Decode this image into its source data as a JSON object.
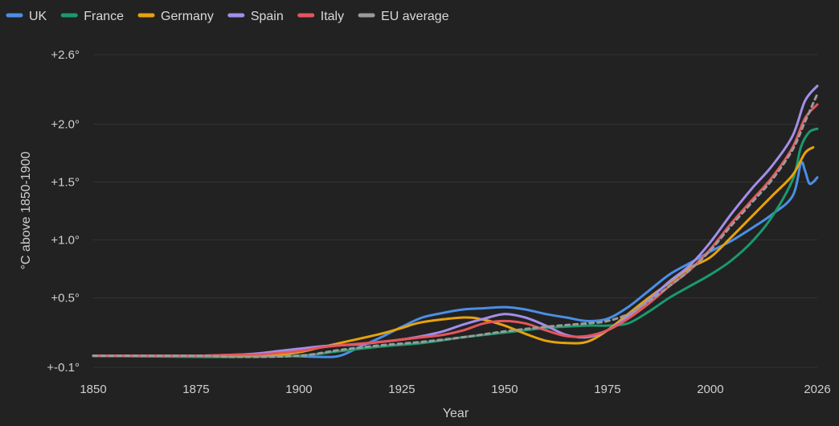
{
  "chart_data": {
    "type": "line",
    "title": "",
    "xlabel": "Year",
    "ylabel": "°C above 1850-1900",
    "xlim": [
      1850,
      2026
    ],
    "ylim": [
      -0.1,
      2.6
    ],
    "x_ticks": [
      1850,
      1875,
      1900,
      1925,
      1950,
      1975,
      2000,
      2026
    ],
    "y_ticks": [
      {
        "value": -0.1,
        "label": "+-0.1°"
      },
      {
        "value": 0.5,
        "label": "+0.5°"
      },
      {
        "value": 1.0,
        "label": "+1.0°"
      },
      {
        "value": 1.5,
        "label": "+1.5°"
      },
      {
        "value": 2.0,
        "label": "+2.0°"
      },
      {
        "value": 2.6,
        "label": "+2.6°"
      }
    ],
    "grid": true,
    "legend_position": "top-left",
    "series": [
      {
        "name": "UK",
        "color": "#4a8fe7",
        "dashed": false,
        "points": [
          [
            1850,
            0.0
          ],
          [
            1875,
            0.0
          ],
          [
            1895,
            0.0
          ],
          [
            1905,
            -0.01
          ],
          [
            1910,
            0.0
          ],
          [
            1915,
            0.08
          ],
          [
            1920,
            0.16
          ],
          [
            1925,
            0.25
          ],
          [
            1930,
            0.33
          ],
          [
            1935,
            0.37
          ],
          [
            1940,
            0.4
          ],
          [
            1945,
            0.41
          ],
          [
            1950,
            0.42
          ],
          [
            1955,
            0.4
          ],
          [
            1960,
            0.36
          ],
          [
            1965,
            0.33
          ],
          [
            1970,
            0.3
          ],
          [
            1975,
            0.32
          ],
          [
            1980,
            0.42
          ],
          [
            1985,
            0.56
          ],
          [
            1990,
            0.7
          ],
          [
            1995,
            0.8
          ],
          [
            2000,
            0.9
          ],
          [
            2005,
            0.99
          ],
          [
            2010,
            1.1
          ],
          [
            2015,
            1.22
          ],
          [
            2020,
            1.38
          ],
          [
            2022,
            1.66
          ],
          [
            2023,
            1.6
          ],
          [
            2024,
            1.49
          ],
          [
            2025,
            1.5
          ],
          [
            2026,
            1.54
          ]
        ]
      },
      {
        "name": "France",
        "color": "#1a9a6c",
        "dashed": false,
        "points": [
          [
            1850,
            0.0
          ],
          [
            1875,
            -0.01
          ],
          [
            1885,
            -0.01
          ],
          [
            1900,
            0.0
          ],
          [
            1910,
            0.04
          ],
          [
            1920,
            0.08
          ],
          [
            1930,
            0.11
          ],
          [
            1940,
            0.16
          ],
          [
            1950,
            0.2
          ],
          [
            1960,
            0.24
          ],
          [
            1970,
            0.26
          ],
          [
            1975,
            0.26
          ],
          [
            1980,
            0.28
          ],
          [
            1985,
            0.38
          ],
          [
            1990,
            0.5
          ],
          [
            1995,
            0.6
          ],
          [
            2000,
            0.7
          ],
          [
            2005,
            0.82
          ],
          [
            2010,
            0.98
          ],
          [
            2015,
            1.2
          ],
          [
            2020,
            1.52
          ],
          [
            2022,
            1.8
          ],
          [
            2024,
            1.93
          ],
          [
            2026,
            1.96
          ]
        ]
      },
      {
        "name": "Germany",
        "color": "#e6a20e",
        "dashed": false,
        "points": [
          [
            1850,
            0.0
          ],
          [
            1875,
            0.0
          ],
          [
            1885,
            0.0
          ],
          [
            1895,
            0.01
          ],
          [
            1900,
            0.03
          ],
          [
            1905,
            0.07
          ],
          [
            1910,
            0.11
          ],
          [
            1920,
            0.19
          ],
          [
            1925,
            0.24
          ],
          [
            1930,
            0.29
          ],
          [
            1940,
            0.33
          ],
          [
            1945,
            0.31
          ],
          [
            1950,
            0.26
          ],
          [
            1955,
            0.19
          ],
          [
            1960,
            0.13
          ],
          [
            1965,
            0.11
          ],
          [
            1970,
            0.12
          ],
          [
            1975,
            0.22
          ],
          [
            1980,
            0.36
          ],
          [
            1985,
            0.5
          ],
          [
            1990,
            0.63
          ],
          [
            1995,
            0.76
          ],
          [
            2000,
            0.85
          ],
          [
            2005,
            1.02
          ],
          [
            2010,
            1.2
          ],
          [
            2015,
            1.38
          ],
          [
            2020,
            1.56
          ],
          [
            2023,
            1.75
          ],
          [
            2025,
            1.8
          ]
        ]
      },
      {
        "name": "Spain",
        "color": "#a48ee8",
        "dashed": false,
        "points": [
          [
            1850,
            0.0
          ],
          [
            1875,
            0.0
          ],
          [
            1885,
            0.01
          ],
          [
            1890,
            0.02
          ],
          [
            1895,
            0.04
          ],
          [
            1900,
            0.06
          ],
          [
            1905,
            0.08
          ],
          [
            1910,
            0.09
          ],
          [
            1915,
            0.1
          ],
          [
            1920,
            0.12
          ],
          [
            1925,
            0.14
          ],
          [
            1930,
            0.17
          ],
          [
            1935,
            0.21
          ],
          [
            1940,
            0.27
          ],
          [
            1945,
            0.32
          ],
          [
            1950,
            0.36
          ],
          [
            1955,
            0.33
          ],
          [
            1960,
            0.26
          ],
          [
            1965,
            0.18
          ],
          [
            1970,
            0.16
          ],
          [
            1975,
            0.22
          ],
          [
            1980,
            0.34
          ],
          [
            1985,
            0.48
          ],
          [
            1990,
            0.64
          ],
          [
            1995,
            0.78
          ],
          [
            2000,
            0.98
          ],
          [
            2005,
            1.22
          ],
          [
            2010,
            1.44
          ],
          [
            2015,
            1.64
          ],
          [
            2020,
            1.9
          ],
          [
            2023,
            2.2
          ],
          [
            2026,
            2.33
          ]
        ]
      },
      {
        "name": "Italy",
        "color": "#e5565e",
        "dashed": false,
        "points": [
          [
            1850,
            0.0
          ],
          [
            1875,
            0.0
          ],
          [
            1885,
            0.01
          ],
          [
            1890,
            0.01
          ],
          [
            1900,
            0.04
          ],
          [
            1905,
            0.07
          ],
          [
            1910,
            0.09
          ],
          [
            1920,
            0.12
          ],
          [
            1930,
            0.16
          ],
          [
            1935,
            0.18
          ],
          [
            1940,
            0.22
          ],
          [
            1945,
            0.28
          ],
          [
            1950,
            0.3
          ],
          [
            1955,
            0.28
          ],
          [
            1960,
            0.22
          ],
          [
            1965,
            0.17
          ],
          [
            1970,
            0.17
          ],
          [
            1975,
            0.22
          ],
          [
            1980,
            0.32
          ],
          [
            1985,
            0.45
          ],
          [
            1990,
            0.6
          ],
          [
            1995,
            0.74
          ],
          [
            2000,
            0.92
          ],
          [
            2005,
            1.14
          ],
          [
            2010,
            1.34
          ],
          [
            2015,
            1.54
          ],
          [
            2020,
            1.8
          ],
          [
            2023,
            2.05
          ],
          [
            2026,
            2.17
          ]
        ]
      },
      {
        "name": "EU average",
        "color": "#9a9a9a",
        "dashed": true,
        "points": [
          [
            1850,
            0.0
          ],
          [
            1875,
            0.0
          ],
          [
            1885,
            -0.01
          ],
          [
            1900,
            0.0
          ],
          [
            1910,
            0.05
          ],
          [
            1920,
            0.09
          ],
          [
            1930,
            0.12
          ],
          [
            1940,
            0.16
          ],
          [
            1950,
            0.21
          ],
          [
            1960,
            0.25
          ],
          [
            1970,
            0.28
          ],
          [
            1975,
            0.3
          ],
          [
            1980,
            0.36
          ],
          [
            1985,
            0.47
          ],
          [
            1990,
            0.6
          ],
          [
            1995,
            0.74
          ],
          [
            2000,
            0.91
          ],
          [
            2005,
            1.12
          ],
          [
            2010,
            1.32
          ],
          [
            2015,
            1.52
          ],
          [
            2020,
            1.78
          ],
          [
            2023,
            2.02
          ],
          [
            2026,
            2.26
          ]
        ]
      }
    ]
  }
}
